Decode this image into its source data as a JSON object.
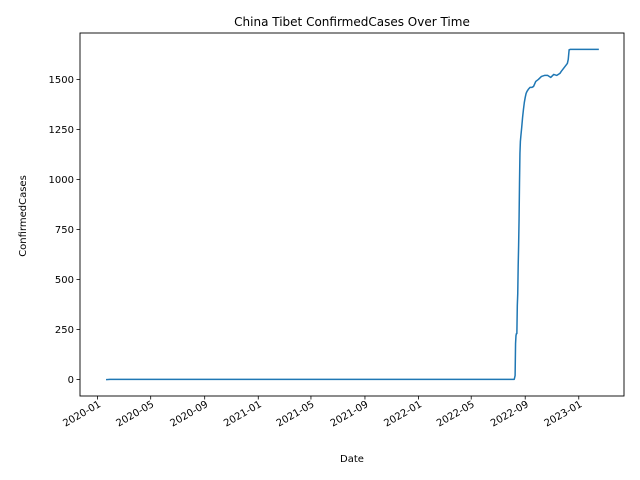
{
  "chart_data": {
    "type": "line",
    "title": "China Tibet ConfirmedCases Over Time",
    "xlabel": "Date",
    "ylabel": "ConfirmedCases",
    "x_ticks": [
      "2020-01",
      "2020-05",
      "2020-09",
      "2021-01",
      "2021-05",
      "2021-09",
      "2022-01",
      "2022-05",
      "2022-09",
      "2023-01"
    ],
    "y_ticks": [
      0,
      250,
      500,
      750,
      1000,
      1250,
      1500
    ],
    "ylim": [
      -82,
      1732
    ],
    "xlim": [
      "2019-11-22",
      "2023-04-14"
    ],
    "grid": false,
    "line_color": "#1f77b4",
    "series": [
      {
        "x": [
          "2020-01-22",
          "2020-01-29",
          "2022-08-07",
          "2022-08-09",
          "2022-08-10",
          "2022-08-11",
          "2022-08-12",
          "2022-08-13",
          "2022-08-14",
          "2022-08-15",
          "2022-08-16",
          "2022-08-17",
          "2022-08-18",
          "2022-08-19",
          "2022-08-20",
          "2022-08-21",
          "2022-08-22",
          "2022-08-24",
          "2022-08-26",
          "2022-08-28",
          "2022-08-30",
          "2022-09-01",
          "2022-09-03",
          "2022-09-05",
          "2022-09-08",
          "2022-09-12",
          "2022-09-16",
          "2022-09-20",
          "2022-09-25",
          "2022-10-01",
          "2022-10-08",
          "2022-10-15",
          "2022-10-22",
          "2022-10-29",
          "2022-11-05",
          "2022-11-12",
          "2022-11-19",
          "2022-11-22",
          "2022-11-29",
          "2022-12-06",
          "2022-12-08",
          "2022-12-10",
          "2022-12-11",
          "2022-12-12",
          "2022-12-14",
          "2023-02-14"
        ],
        "y": [
          0,
          1,
          1,
          20,
          180,
          220,
          230,
          230,
          370,
          430,
          570,
          670,
          800,
          980,
          1130,
          1190,
          1215,
          1260,
          1310,
          1350,
          1385,
          1410,
          1430,
          1440,
          1450,
          1460,
          1460,
          1465,
          1490,
          1500,
          1515,
          1520,
          1520,
          1510,
          1525,
          1520,
          1530,
          1540,
          1560,
          1580,
          1600,
          1648,
          1648,
          1650,
          1650,
          1650
        ]
      }
    ]
  }
}
